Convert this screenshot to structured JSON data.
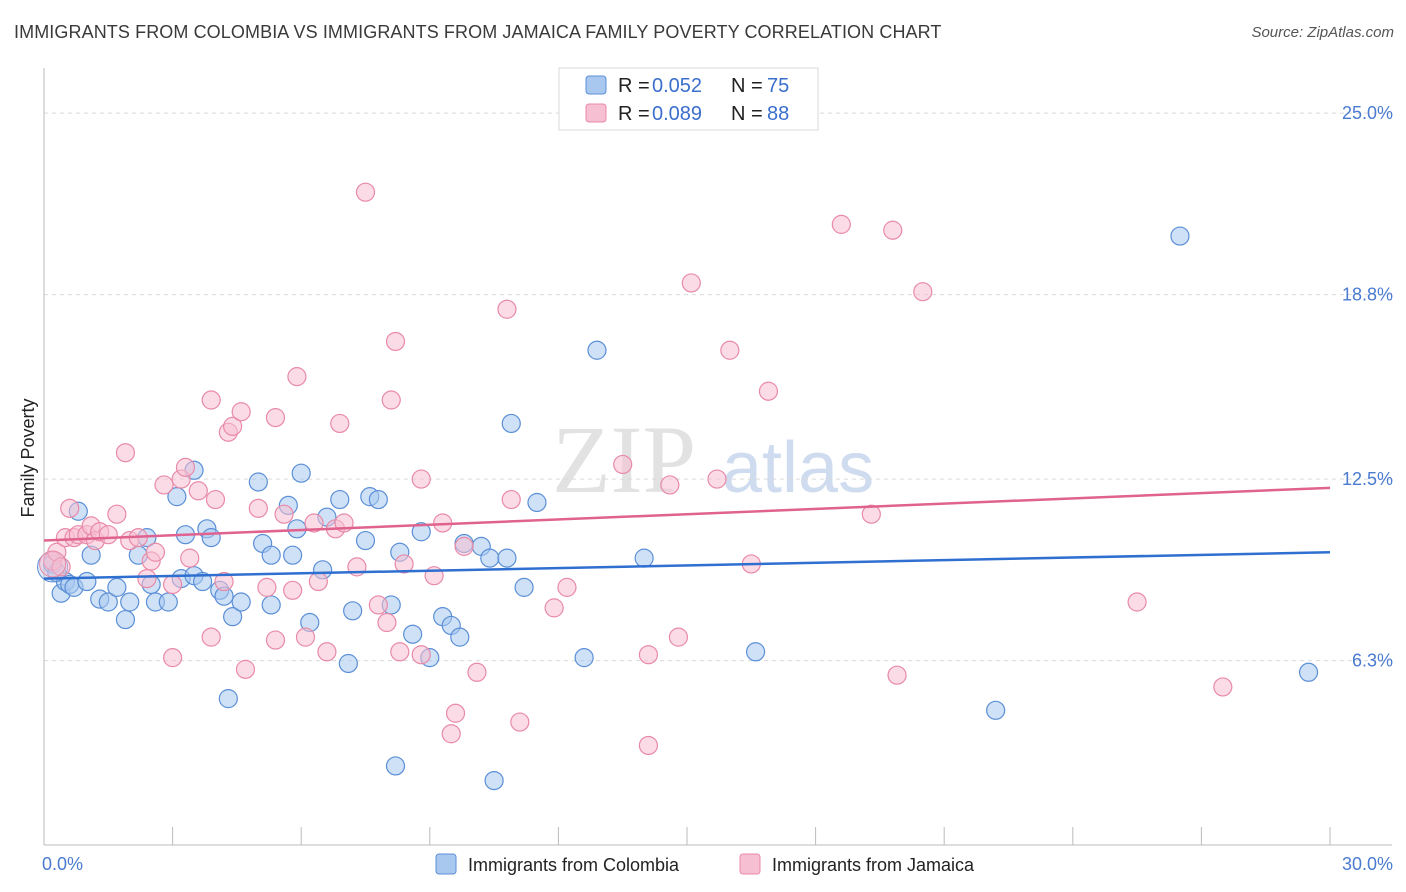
{
  "title": "IMMIGRANTS FROM COLOMBIA VS IMMIGRANTS FROM JAMAICA FAMILY POVERTY CORRELATION CHART",
  "source": "Source: ZipAtlas.com",
  "watermark": {
    "zip": "ZIP",
    "atlas": "atlas"
  },
  "colors": {
    "colombia_fill": "#a8c8f0",
    "colombia_stroke": "#5b8fd6",
    "colombia_line": "#2f6fd0",
    "jamaica_fill": "#f7bfd2",
    "jamaica_stroke": "#e88aa8",
    "jamaica_line": "#e0628e",
    "grid": "#d9d9d9",
    "tick_label": "#4a7bd0"
  },
  "legend": {
    "items": [
      {
        "r_label": "R = ",
        "r_value": "0.052",
        "n_label": "N = ",
        "n_value": "75"
      },
      {
        "r_label": "R = ",
        "r_value": "0.089",
        "n_label": "N = ",
        "n_value": "88"
      }
    ]
  },
  "chart_data": {
    "type": "scatter",
    "title": "IMMIGRANTS FROM COLOMBIA VS IMMIGRANTS FROM JAMAICA FAMILY POVERTY CORRELATION CHART",
    "xlabel": "",
    "ylabel": "Family Poverty",
    "xlim": [
      0,
      30
    ],
    "ylim": [
      0,
      26.2
    ],
    "x_tick_labels": [
      "0.0%",
      "30.0%"
    ],
    "y_ticks": [
      6.3,
      12.5,
      18.8,
      25.0
    ],
    "y_tick_labels": [
      "6.3%",
      "12.5%",
      "18.8%",
      "25.0%"
    ],
    "legend_position": "top-center",
    "series": [
      {
        "name": "Immigrants from Colombia",
        "trend": {
          "x": [
            0,
            30
          ],
          "y": [
            9.1,
            10.0
          ]
        },
        "points": [
          [
            0.2,
            9.6
          ],
          [
            0.3,
            9.3
          ],
          [
            0.4,
            8.6
          ],
          [
            0.5,
            9.0
          ],
          [
            0.6,
            8.9
          ],
          [
            0.7,
            8.8
          ],
          [
            0.8,
            11.4
          ],
          [
            1.0,
            9.0
          ],
          [
            1.1,
            9.9
          ],
          [
            1.3,
            8.4
          ],
          [
            1.5,
            8.3
          ],
          [
            1.7,
            8.8
          ],
          [
            1.9,
            7.7
          ],
          [
            2.0,
            8.3
          ],
          [
            2.2,
            9.9
          ],
          [
            2.4,
            10.5
          ],
          [
            2.5,
            8.9
          ],
          [
            2.6,
            8.3
          ],
          [
            2.9,
            8.3
          ],
          [
            3.1,
            11.9
          ],
          [
            3.2,
            9.1
          ],
          [
            3.3,
            10.6
          ],
          [
            3.5,
            9.2
          ],
          [
            3.5,
            12.8
          ],
          [
            3.7,
            9.0
          ],
          [
            3.8,
            10.8
          ],
          [
            3.9,
            10.5
          ],
          [
            4.1,
            8.7
          ],
          [
            4.2,
            8.5
          ],
          [
            4.3,
            5.0
          ],
          [
            4.4,
            7.8
          ],
          [
            4.6,
            8.3
          ],
          [
            5.0,
            12.4
          ],
          [
            5.1,
            10.3
          ],
          [
            5.3,
            9.9
          ],
          [
            5.3,
            8.2
          ],
          [
            5.7,
            11.6
          ],
          [
            5.8,
            9.9
          ],
          [
            5.9,
            10.8
          ],
          [
            6.0,
            12.7
          ],
          [
            6.2,
            7.6
          ],
          [
            6.5,
            9.4
          ],
          [
            6.6,
            11.2
          ],
          [
            6.9,
            11.8
          ],
          [
            7.1,
            6.2
          ],
          [
            7.2,
            8.0
          ],
          [
            7.5,
            10.4
          ],
          [
            7.6,
            11.9
          ],
          [
            7.8,
            11.8
          ],
          [
            8.1,
            8.2
          ],
          [
            8.2,
            2.7
          ],
          [
            8.3,
            10.0
          ],
          [
            8.6,
            7.2
          ],
          [
            8.8,
            10.7
          ],
          [
            9.0,
            6.4
          ],
          [
            9.3,
            7.8
          ],
          [
            9.5,
            7.5
          ],
          [
            9.7,
            7.1
          ],
          [
            9.8,
            10.3
          ],
          [
            10.2,
            10.2
          ],
          [
            10.4,
            9.8
          ],
          [
            10.5,
            2.2
          ],
          [
            10.8,
            9.8
          ],
          [
            10.9,
            14.4
          ],
          [
            11.2,
            8.8
          ],
          [
            11.5,
            11.7
          ],
          [
            12.6,
            6.4
          ],
          [
            12.9,
            16.9
          ],
          [
            14.0,
            9.8
          ],
          [
            16.6,
            6.6
          ],
          [
            22.2,
            4.6
          ],
          [
            26.5,
            20.8
          ],
          [
            29.5,
            5.9
          ]
        ]
      },
      {
        "name": "Immigrants from Jamaica",
        "trend": {
          "x": [
            0,
            30
          ],
          "y": [
            10.4,
            12.2
          ]
        },
        "points": [
          [
            0.2,
            9.7
          ],
          [
            0.3,
            10.0
          ],
          [
            0.4,
            9.5
          ],
          [
            0.5,
            10.5
          ],
          [
            0.6,
            11.5
          ],
          [
            0.7,
            10.5
          ],
          [
            0.8,
            10.6
          ],
          [
            1.0,
            10.6
          ],
          [
            1.1,
            10.9
          ],
          [
            1.2,
            10.4
          ],
          [
            1.3,
            10.7
          ],
          [
            1.5,
            10.6
          ],
          [
            1.7,
            11.3
          ],
          [
            1.9,
            13.4
          ],
          [
            2.0,
            10.4
          ],
          [
            2.2,
            10.5
          ],
          [
            2.4,
            9.1
          ],
          [
            2.5,
            9.7
          ],
          [
            2.6,
            10.0
          ],
          [
            2.8,
            12.3
          ],
          [
            3.0,
            6.4
          ],
          [
            3.0,
            8.9
          ],
          [
            3.2,
            12.5
          ],
          [
            3.3,
            12.9
          ],
          [
            3.4,
            9.8
          ],
          [
            3.6,
            12.1
          ],
          [
            3.9,
            7.1
          ],
          [
            3.9,
            15.2
          ],
          [
            4.0,
            11.8
          ],
          [
            4.2,
            9.0
          ],
          [
            4.3,
            14.1
          ],
          [
            4.4,
            14.3
          ],
          [
            4.6,
            14.8
          ],
          [
            4.7,
            6.0
          ],
          [
            5.0,
            11.5
          ],
          [
            5.2,
            8.8
          ],
          [
            5.4,
            7.0
          ],
          [
            5.4,
            14.6
          ],
          [
            5.6,
            11.3
          ],
          [
            5.8,
            8.7
          ],
          [
            5.9,
            16.0
          ],
          [
            6.1,
            7.1
          ],
          [
            6.3,
            11.0
          ],
          [
            6.4,
            9.0
          ],
          [
            6.6,
            6.6
          ],
          [
            6.8,
            10.8
          ],
          [
            6.9,
            14.4
          ],
          [
            7.0,
            11.0
          ],
          [
            7.3,
            9.5
          ],
          [
            7.5,
            22.3
          ],
          [
            7.8,
            8.2
          ],
          [
            8.0,
            7.6
          ],
          [
            8.1,
            15.2
          ],
          [
            8.2,
            17.2
          ],
          [
            8.3,
            6.6
          ],
          [
            8.4,
            9.6
          ],
          [
            8.8,
            6.5
          ],
          [
            8.8,
            12.5
          ],
          [
            9.1,
            9.2
          ],
          [
            9.3,
            11.0
          ],
          [
            9.5,
            3.8
          ],
          [
            9.6,
            4.5
          ],
          [
            9.8,
            10.2
          ],
          [
            10.1,
            5.9
          ],
          [
            10.8,
            18.3
          ],
          [
            10.9,
            11.8
          ],
          [
            11.1,
            4.2
          ],
          [
            11.9,
            8.1
          ],
          [
            12.2,
            8.8
          ],
          [
            13.5,
            13.0
          ],
          [
            14.1,
            6.5
          ],
          [
            14.1,
            3.4
          ],
          [
            14.6,
            12.3
          ],
          [
            14.8,
            7.1
          ],
          [
            15.1,
            19.2
          ],
          [
            15.7,
            12.5
          ],
          [
            16.0,
            16.9
          ],
          [
            16.5,
            9.6
          ],
          [
            16.9,
            15.5
          ],
          [
            18.6,
            21.2
          ],
          [
            19.3,
            11.3
          ],
          [
            19.8,
            21.0
          ],
          [
            19.9,
            5.8
          ],
          [
            20.5,
            18.9
          ],
          [
            25.5,
            8.3
          ],
          [
            27.5,
            5.4
          ]
        ]
      }
    ]
  }
}
